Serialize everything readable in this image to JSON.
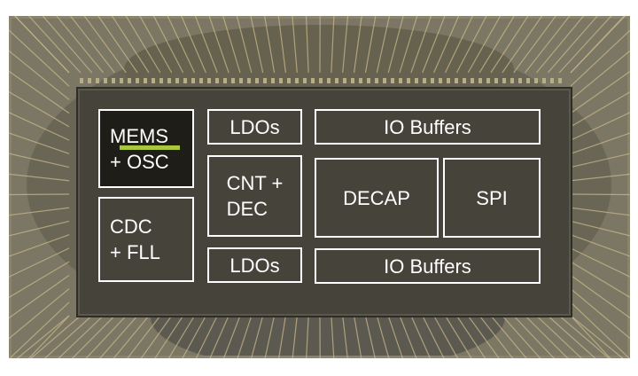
{
  "photo": {
    "subject_icon": "microchip-die-photo",
    "colors": {
      "background": "#7c7765",
      "die": "#45433a",
      "bondwire": "#c9b98a",
      "outline": "#ffffff",
      "osc_bar": "#a9c63d"
    }
  },
  "blocks": {
    "mems": {
      "label": "MEMS\n+ OSC"
    },
    "cdc": {
      "label": "CDC\n+ FLL"
    },
    "ldo_top": {
      "label": "LDOs"
    },
    "cnt": {
      "label": "CNT +\nDEC"
    },
    "ldo_bottom": {
      "label": "LDOs"
    },
    "io_top": {
      "label": "IO Buffers"
    },
    "decap": {
      "label": "DECAP"
    },
    "spi": {
      "label": "SPI"
    },
    "io_bottom": {
      "label": "IO Buffers"
    }
  }
}
